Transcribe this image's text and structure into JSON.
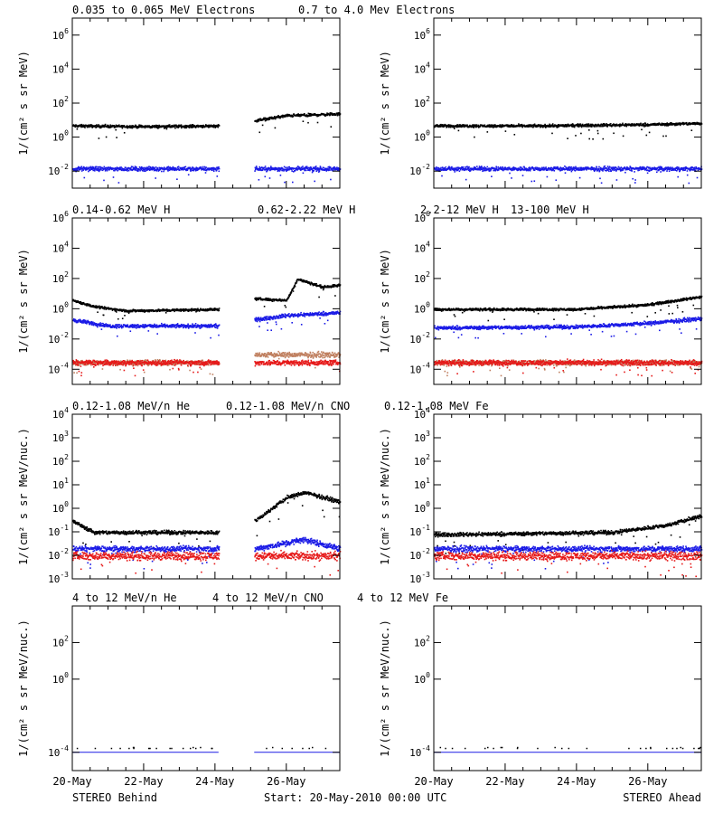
{
  "colors": {
    "black": "#000000",
    "blue": "#1a1ae6",
    "tan": "#c08060",
    "red": "#e61a1a"
  },
  "footer": {
    "left": "STEREO Behind",
    "center": "Start: 20-May-2010 00:00 UTC",
    "right": "STEREO Ahead"
  },
  "x_ticks": [
    "20-May",
    "22-May",
    "24-May",
    "26-May"
  ],
  "chart_data": [
    {
      "type": "scatter",
      "panel": "electrons-behind",
      "labels": [
        {
          "text": "0.035 to 0.065 MeV Electrons",
          "color": "black"
        },
        {
          "text": "0.7 to 4.0 Mev Electrons",
          "color": "blue"
        }
      ],
      "ylabel": "1/(cm² s sr MeV)",
      "log": true,
      "ylim_exp": [
        -3,
        7
      ],
      "yticks": [
        "10^-2",
        "10^0",
        "10^2",
        "10^4",
        "10^6"
      ],
      "xlim_days": [
        0,
        7.5
      ],
      "gap_days": [
        4.1,
        5.1
      ],
      "series": [
        {
          "name": "0.035 to 0.065 MeV Electrons",
          "color": "black",
          "points": [
            [
              0,
              5
            ],
            [
              2,
              4.5
            ],
            [
              4.1,
              5
            ],
            [
              5.1,
              10
            ],
            [
              6,
              20
            ],
            [
              7.5,
              25
            ]
          ]
        },
        {
          "name": "0.7 to 4.0 Mev Electrons",
          "color": "blue",
          "points": [
            [
              0,
              0.015
            ],
            [
              4.1,
              0.015
            ],
            [
              5.1,
              0.015
            ],
            [
              7.5,
              0.015
            ]
          ]
        }
      ]
    },
    {
      "type": "scatter",
      "panel": "electrons-ahead",
      "labels": [],
      "ylabel": "1/(cm² s sr MeV)",
      "log": true,
      "ylim_exp": [
        -3,
        7
      ],
      "yticks": [
        "10^-2",
        "10^0",
        "10^2",
        "10^4",
        "10^6"
      ],
      "xlim_days": [
        0,
        7.5
      ],
      "gap_days": null,
      "series": [
        {
          "name": "",
          "color": "black",
          "points": [
            [
              0,
              5
            ],
            [
              3,
              5
            ],
            [
              6,
              6
            ],
            [
              7.5,
              7
            ]
          ]
        },
        {
          "name": "",
          "color": "blue",
          "points": [
            [
              0,
              0.015
            ],
            [
              7.5,
              0.015
            ]
          ]
        }
      ]
    },
    {
      "type": "scatter",
      "panel": "protons-behind",
      "labels": [
        {
          "text": "0.14-0.62 MeV H",
          "color": "black"
        },
        {
          "text": "0.62-2.22 MeV H",
          "color": "blue"
        },
        {
          "text": "2.2-12 MeV H",
          "color": "tan"
        },
        {
          "text": "13-100 MeV H",
          "color": "red"
        }
      ],
      "ylabel": "1/(cm² s sr MeV)",
      "log": true,
      "ylim_exp": [
        -5,
        6
      ],
      "yticks": [
        "10^-4",
        "10^-2",
        "10^0",
        "10^2",
        "10^4",
        "10^6"
      ],
      "xlim_days": [
        0,
        7.5
      ],
      "gap_days": [
        4.1,
        5.1
      ],
      "series": [
        {
          "name": "0.14-0.62 MeV H",
          "color": "black",
          "points": [
            [
              0,
              4
            ],
            [
              0.6,
              1.5
            ],
            [
              1.5,
              0.8
            ],
            [
              4.1,
              1
            ],
            [
              5.1,
              5
            ],
            [
              6,
              4
            ],
            [
              6.3,
              100
            ],
            [
              7,
              30
            ],
            [
              7.5,
              40
            ]
          ]
        },
        {
          "name": "0.62-2.22 MeV H",
          "color": "blue",
          "points": [
            [
              0,
              0.2
            ],
            [
              1,
              0.08
            ],
            [
              4.1,
              0.08
            ],
            [
              5.1,
              0.2
            ],
            [
              6,
              0.4
            ],
            [
              7.5,
              0.6
            ]
          ]
        },
        {
          "name": "2.2-12 MeV H",
          "color": "tan",
          "points": [
            [
              0,
              0.0003
            ],
            [
              4.1,
              0.0003
            ],
            [
              5.1,
              0.001
            ],
            [
              7.5,
              0.001
            ]
          ]
        },
        {
          "name": "13-100 MeV H",
          "color": "red",
          "points": [
            [
              0,
              0.0003
            ],
            [
              4.1,
              0.0003
            ],
            [
              5.1,
              0.0003
            ],
            [
              7.5,
              0.0003
            ]
          ]
        }
      ]
    },
    {
      "type": "scatter",
      "panel": "protons-ahead",
      "labels": [],
      "ylabel": "1/(cm² s sr MeV)",
      "log": true,
      "ylim_exp": [
        -5,
        6
      ],
      "yticks": [
        "10^-4",
        "10^-2",
        "10^0",
        "10^2",
        "10^4",
        "10^6"
      ],
      "xlim_days": [
        0,
        7.5
      ],
      "gap_days": null,
      "series": [
        {
          "name": "",
          "color": "black",
          "points": [
            [
              0,
              1
            ],
            [
              4,
              1
            ],
            [
              6,
              2
            ],
            [
              7.5,
              7
            ]
          ]
        },
        {
          "name": "",
          "color": "blue",
          "points": [
            [
              0,
              0.06
            ],
            [
              4,
              0.07
            ],
            [
              6,
              0.12
            ],
            [
              7.5,
              0.25
            ]
          ]
        },
        {
          "name": "",
          "color": "tan",
          "points": [
            [
              0,
              0.0003
            ],
            [
              7.5,
              0.0003
            ]
          ]
        },
        {
          "name": "",
          "color": "red",
          "points": [
            [
              0,
              0.0003
            ],
            [
              7.5,
              0.0003
            ]
          ]
        }
      ]
    },
    {
      "type": "scatter",
      "panel": "heavy-low-behind",
      "labels": [
        {
          "text": "0.12-1.08 MeV/n He",
          "color": "black"
        },
        {
          "text": "0.12-1.08 MeV/n CNO",
          "color": "blue"
        },
        {
          "text": "0.12-1.08 MeV Fe",
          "color": "red"
        }
      ],
      "ylabel": "1/(cm² s sr MeV/nuc.)",
      "log": true,
      "ylim_exp": [
        -3,
        4
      ],
      "yticks": [
        "10^-3",
        "10^-2",
        "10^-1",
        "10^0",
        "10^1",
        "10^2",
        "10^3",
        "10^4"
      ],
      "xlim_days": [
        0,
        7.5
      ],
      "gap_days": [
        4.1,
        5.1
      ],
      "series": [
        {
          "name": "0.12-1.08 MeV/n He",
          "color": "black",
          "points": [
            [
              0,
              0.3
            ],
            [
              0.6,
              0.1
            ],
            [
              4.1,
              0.1
            ],
            [
              5.1,
              0.3
            ],
            [
              6,
              3
            ],
            [
              6.5,
              5
            ],
            [
              7.5,
              2
            ]
          ]
        },
        {
          "name": "0.12-1.08 MeV/n CNO",
          "color": "blue",
          "points": [
            [
              0,
              0.02
            ],
            [
              4.1,
              0.02
            ],
            [
              5.1,
              0.02
            ],
            [
              6.5,
              0.05
            ],
            [
              7.5,
              0.02
            ]
          ]
        },
        {
          "name": "0.12-1.08 MeV Fe",
          "color": "red",
          "points": [
            [
              0,
              0.01
            ],
            [
              4.1,
              0.01
            ],
            [
              5.1,
              0.01
            ],
            [
              7.5,
              0.01
            ]
          ]
        }
      ]
    },
    {
      "type": "scatter",
      "panel": "heavy-low-ahead",
      "labels": [],
      "ylabel": "1/(cm² s sr MeV/nuc.)",
      "log": true,
      "ylim_exp": [
        -3,
        4
      ],
      "yticks": [
        "10^-3",
        "10^-2",
        "10^-1",
        "10^0",
        "10^1",
        "10^2",
        "10^3",
        "10^4"
      ],
      "xlim_days": [
        0,
        7.5
      ],
      "gap_days": null,
      "series": [
        {
          "name": "",
          "color": "black",
          "points": [
            [
              0,
              0.08
            ],
            [
              5,
              0.1
            ],
            [
              6.5,
              0.2
            ],
            [
              7.5,
              0.5
            ]
          ]
        },
        {
          "name": "",
          "color": "blue",
          "points": [
            [
              0,
              0.02
            ],
            [
              7.5,
              0.02
            ]
          ]
        },
        {
          "name": "",
          "color": "red",
          "points": [
            [
              0,
              0.01
            ],
            [
              7.5,
              0.01
            ]
          ]
        }
      ]
    },
    {
      "type": "scatter",
      "panel": "heavy-high-behind",
      "labels": [
        {
          "text": "4 to 12 MeV/n He",
          "color": "black"
        },
        {
          "text": "4 to 12 MeV/n CNO",
          "color": "blue"
        },
        {
          "text": "4 to 12 MeV Fe",
          "color": "red"
        }
      ],
      "ylabel": "1/(cm² s sr MeV/nuc.)",
      "log": true,
      "ylim_exp": [
        -5,
        4
      ],
      "yticks": [
        "10^-4",
        "10^0",
        "10^2"
      ],
      "xlim_days": [
        0,
        7.5
      ],
      "gap_days": [
        4.1,
        5.1
      ],
      "series": [
        {
          "name": "4 to 12 MeV/n He",
          "color": "black",
          "points": [
            [
              0,
              0.0001
            ],
            [
              4.1,
              0.0001
            ],
            [
              5.1,
              0.0001
            ],
            [
              7.5,
              0.0001
            ]
          ]
        },
        {
          "name": "4 to 12 MeV/n CNO",
          "color": "blue",
          "points": [
            [
              0,
              0.0001
            ],
            [
              4.1,
              0.0001
            ],
            [
              5.1,
              0.0001
            ],
            [
              7.5,
              0.0001
            ]
          ]
        }
      ]
    },
    {
      "type": "scatter",
      "panel": "heavy-high-ahead",
      "labels": [],
      "ylabel": "1/(cm² s sr MeV/nuc.)",
      "log": true,
      "ylim_exp": [
        -5,
        4
      ],
      "yticks": [
        "10^-4",
        "10^0",
        "10^2"
      ],
      "xlim_days": [
        0,
        7.5
      ],
      "gap_days": null,
      "series": [
        {
          "name": "",
          "color": "black",
          "points": [
            [
              0,
              0.0001
            ],
            [
              7.5,
              0.0001
            ]
          ]
        },
        {
          "name": "",
          "color": "blue",
          "points": [
            [
              0,
              0.0001
            ],
            [
              7.5,
              0.0001
            ]
          ]
        }
      ]
    }
  ]
}
